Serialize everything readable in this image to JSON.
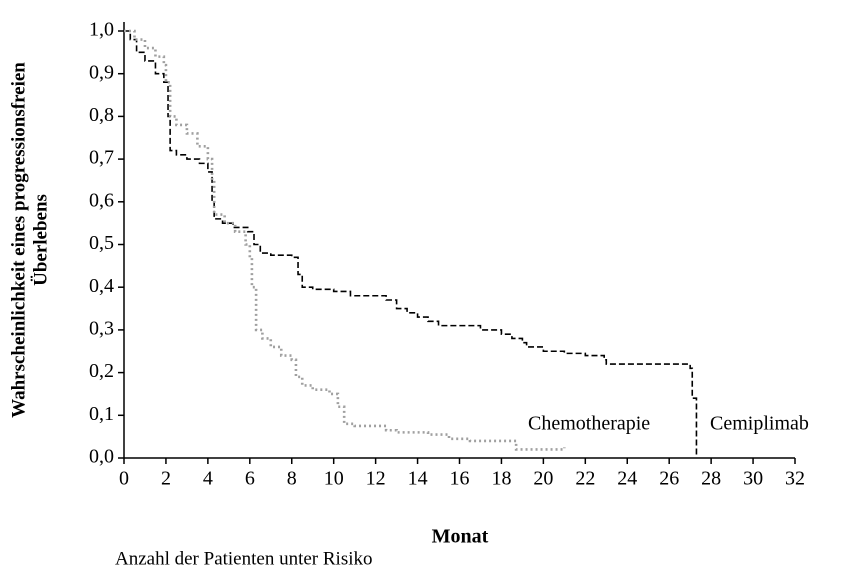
{
  "chart_data": {
    "type": "step",
    "ylabel": [
      "Wahrscheinlichkeit eines progressionsfreien",
      "Überlebens"
    ],
    "xlabel": "Monat",
    "footnote": "Anzahl der Patienten unter Risiko",
    "xlim": [
      0,
      32
    ],
    "xticks": [
      0,
      2,
      4,
      6,
      8,
      10,
      12,
      14,
      16,
      18,
      20,
      22,
      24,
      26,
      28,
      30,
      32
    ],
    "ylim": [
      0,
      1
    ],
    "yticks": [
      {
        "value": 0,
        "label": "0,0"
      },
      {
        "value": 0.1,
        "label": "0,1"
      },
      {
        "value": 0.2,
        "label": "0,2"
      },
      {
        "value": 0.3,
        "label": "0,3"
      },
      {
        "value": 0.4,
        "label": "0,4"
      },
      {
        "value": 0.5,
        "label": "0,5"
      },
      {
        "value": 0.6,
        "label": "0,6"
      },
      {
        "value": 0.7,
        "label": "0,7"
      },
      {
        "value": 0.8,
        "label": "0,8"
      },
      {
        "value": 0.9,
        "label": "0,9"
      },
      {
        "value": 1,
        "label": "1,0"
      }
    ],
    "series": [
      {
        "name": "Cemiplimab",
        "color": "#000000",
        "dash": "6,3",
        "x": [
          0,
          0.3,
          0.6,
          1.0,
          1.5,
          1.9,
          2.1,
          2.2,
          2.5,
          3.0,
          3.6,
          4.0,
          4.2,
          4.3,
          4.7,
          5.2,
          5.9,
          6.2,
          6.5,
          7.0,
          8.0,
          8.3,
          8.5,
          9.0,
          10.0,
          10.8,
          12.5,
          13.0,
          13.5,
          14.0,
          14.5,
          15.0,
          17.0,
          18.0,
          18.5,
          19.0,
          19.2,
          20.0,
          21.0,
          22.0,
          22.9,
          23.0,
          27.0,
          27.1,
          27.3
        ],
        "values": [
          1.0,
          0.98,
          0.95,
          0.93,
          0.9,
          0.88,
          0.8,
          0.72,
          0.71,
          0.7,
          0.69,
          0.67,
          0.6,
          0.56,
          0.55,
          0.54,
          0.53,
          0.5,
          0.48,
          0.475,
          0.47,
          0.43,
          0.4,
          0.395,
          0.39,
          0.38,
          0.37,
          0.35,
          0.34,
          0.33,
          0.32,
          0.31,
          0.3,
          0.29,
          0.28,
          0.27,
          0.26,
          0.25,
          0.245,
          0.24,
          0.23,
          0.22,
          0.21,
          0.14,
          0.0
        ]
      },
      {
        "name": "Chemotherapie",
        "color": "#a0a0a0",
        "dash": "2,3",
        "x": [
          0,
          0.5,
          1.0,
          1.5,
          1.9,
          2.0,
          2.2,
          2.5,
          3.0,
          3.5,
          4.0,
          4.2,
          4.3,
          4.8,
          5.3,
          5.8,
          6.0,
          6.1,
          6.3,
          6.6,
          7.0,
          7.5,
          8.0,
          8.2,
          8.5,
          9.0,
          9.8,
          10.2,
          10.5,
          11.0,
          12.5,
          13.0,
          14.5,
          15.5,
          16.5,
          18.7,
          21.0
        ],
        "values": [
          1.0,
          0.98,
          0.96,
          0.94,
          0.92,
          0.88,
          0.8,
          0.78,
          0.76,
          0.73,
          0.7,
          0.65,
          0.57,
          0.55,
          0.53,
          0.5,
          0.47,
          0.4,
          0.3,
          0.28,
          0.26,
          0.24,
          0.23,
          0.19,
          0.17,
          0.16,
          0.15,
          0.12,
          0.08,
          0.075,
          0.065,
          0.06,
          0.055,
          0.045,
          0.04,
          0.02,
          0.025
        ]
      }
    ]
  }
}
